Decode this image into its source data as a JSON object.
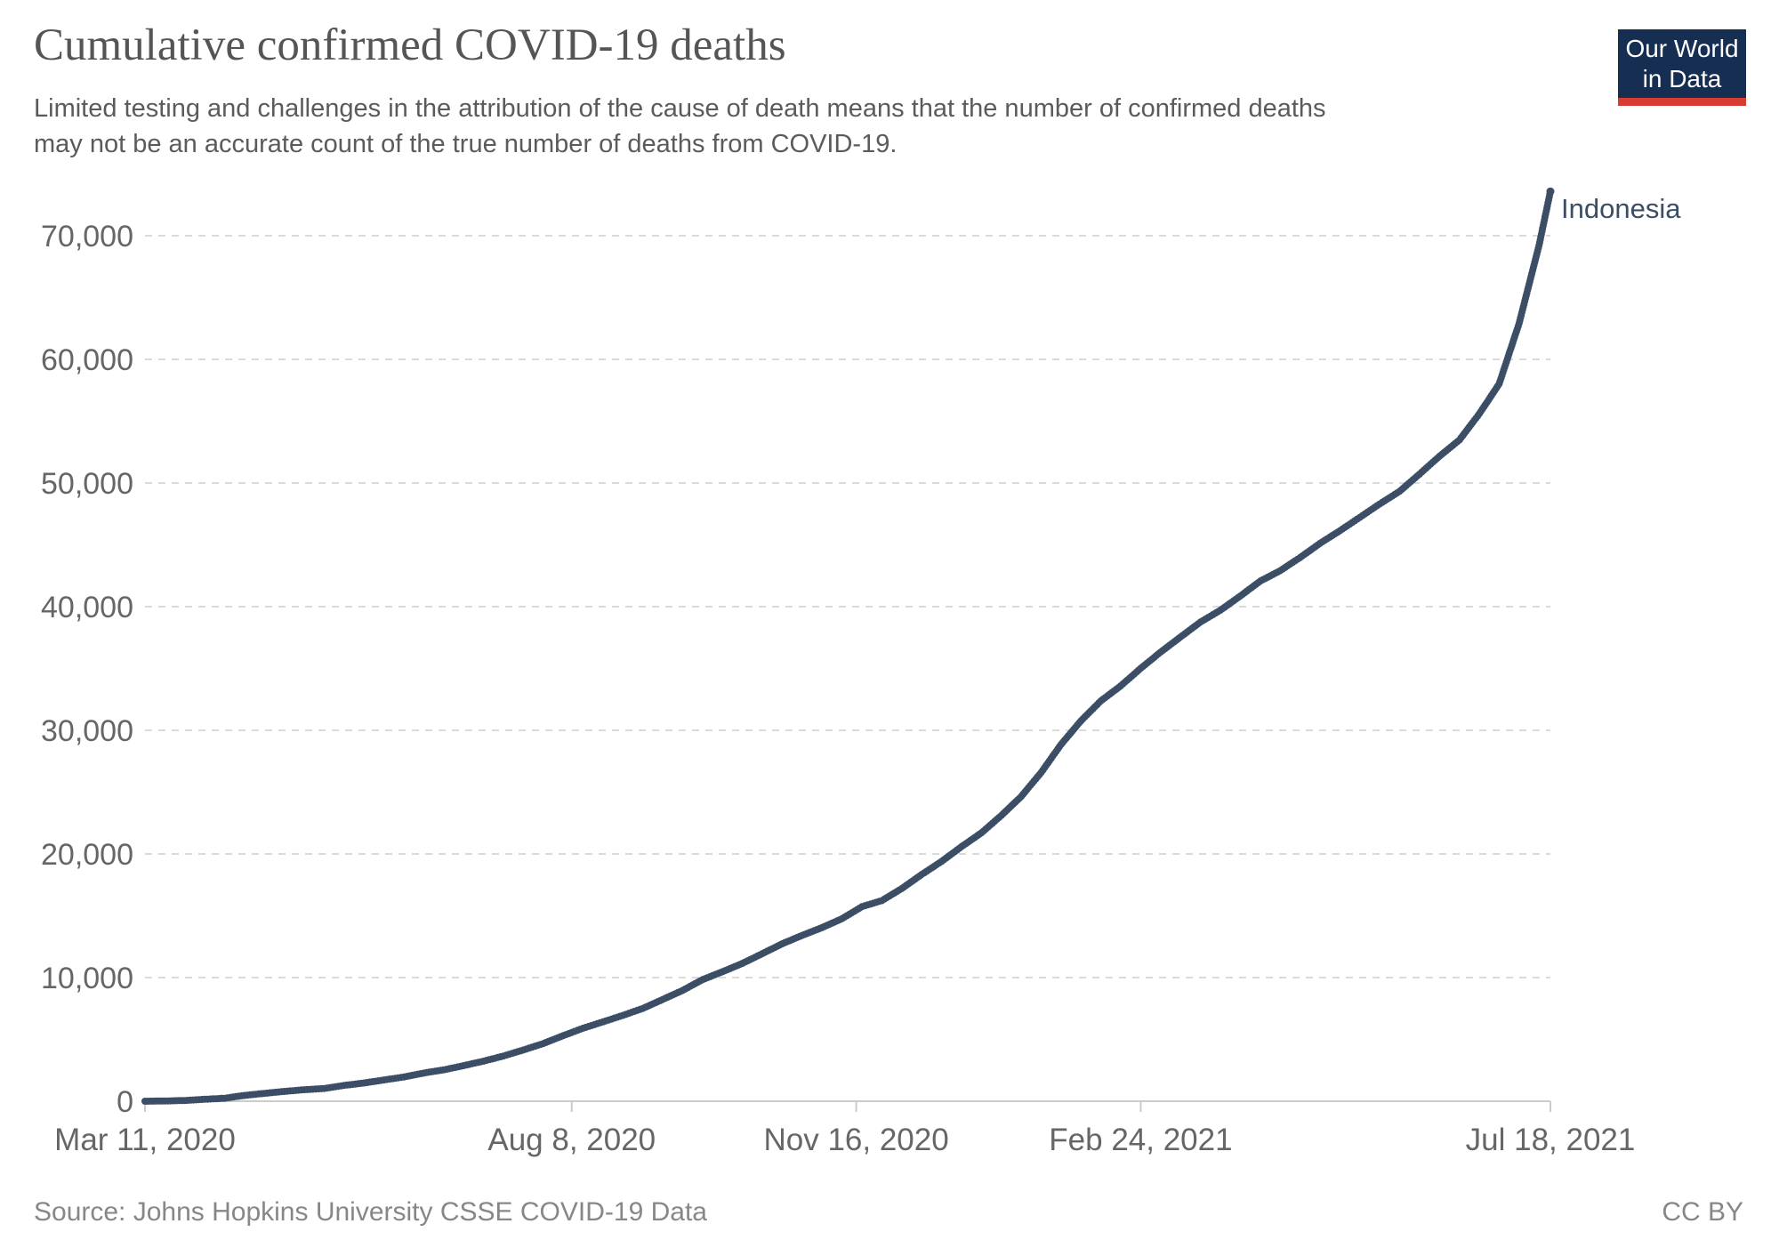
{
  "header": {
    "title": "Cumulative confirmed COVID-19 deaths",
    "subtitle_lines": [
      "Limited testing and challenges in the attribution of the cause of death means that the number of confirmed deaths",
      "may not be an accurate count of the true number of deaths from COVID-19."
    ]
  },
  "logo": {
    "line1": "Our World",
    "line2": "in Data",
    "bg_color": "#152e52",
    "accent_color": "#d73c32"
  },
  "footer": {
    "source": "Source: Johns Hopkins University CSSE COVID-19 Data",
    "license": "CC BY"
  },
  "chart_data": {
    "type": "line",
    "title": "Cumulative confirmed COVID-19 deaths",
    "xlabel": "",
    "ylabel": "",
    "grid": "horizontal-dashed",
    "legend_position": "end-of-line-label",
    "ylim": [
      0,
      70000
    ],
    "y_ticks": [
      {
        "value": 0,
        "label": "0"
      },
      {
        "value": 10000,
        "label": "10,000"
      },
      {
        "value": 20000,
        "label": "20,000"
      },
      {
        "value": 30000,
        "label": "30,000"
      },
      {
        "value": 40000,
        "label": "40,000"
      },
      {
        "value": 50000,
        "label": "50,000"
      },
      {
        "value": 60000,
        "label": "60,000"
      },
      {
        "value": 70000,
        "label": "70,000"
      }
    ],
    "x_ticks": [
      {
        "date": "2020-03-11",
        "label": "Mar 11, 2020"
      },
      {
        "date": "2020-08-08",
        "label": "Aug 8, 2020"
      },
      {
        "date": "2020-11-16",
        "label": "Nov 16, 2020"
      },
      {
        "date": "2021-02-24",
        "label": "Feb 24, 2021"
      },
      {
        "date": "2021-07-18",
        "label": "Jul 18, 2021"
      }
    ],
    "series": [
      {
        "name": "Indonesia",
        "color": "#3b4e66",
        "points": [
          [
            "2020-03-11",
            1
          ],
          [
            "2020-03-18",
            19
          ],
          [
            "2020-03-25",
            58
          ],
          [
            "2020-04-01",
            157
          ],
          [
            "2020-04-08",
            240
          ],
          [
            "2020-04-15",
            469
          ],
          [
            "2020-04-22",
            635
          ],
          [
            "2020-04-29",
            792
          ],
          [
            "2020-05-06",
            930
          ],
          [
            "2020-05-13",
            1028
          ],
          [
            "2020-05-20",
            1278
          ],
          [
            "2020-05-27",
            1473
          ],
          [
            "2020-06-03",
            1721
          ],
          [
            "2020-06-10",
            1959
          ],
          [
            "2020-06-17",
            2276
          ],
          [
            "2020-06-24",
            2535
          ],
          [
            "2020-07-01",
            2876
          ],
          [
            "2020-07-08",
            3241
          ],
          [
            "2020-07-15",
            3656
          ],
          [
            "2020-07-22",
            4143
          ],
          [
            "2020-07-29",
            4665
          ],
          [
            "2020-08-05",
            5302
          ],
          [
            "2020-08-12",
            5903
          ],
          [
            "2020-08-19",
            6418
          ],
          [
            "2020-08-26",
            6944
          ],
          [
            "2020-09-02",
            7505
          ],
          [
            "2020-09-09",
            8230
          ],
          [
            "2020-09-16",
            8965
          ],
          [
            "2020-09-23",
            9837
          ],
          [
            "2020-09-30",
            10473
          ],
          [
            "2020-10-07",
            11151
          ],
          [
            "2020-10-14",
            11935
          ],
          [
            "2020-10-21",
            12734
          ],
          [
            "2020-10-28",
            13411
          ],
          [
            "2020-11-04",
            14044
          ],
          [
            "2020-11-11",
            14761
          ],
          [
            "2020-11-18",
            15734
          ],
          [
            "2020-11-25",
            16225
          ],
          [
            "2020-12-02",
            17199
          ],
          [
            "2020-12-09",
            18336
          ],
          [
            "2020-12-16",
            19390
          ],
          [
            "2020-12-23",
            20589
          ],
          [
            "2020-12-30",
            21703
          ],
          [
            "2021-01-06",
            23109
          ],
          [
            "2021-01-13",
            24645
          ],
          [
            "2021-01-20",
            26590
          ],
          [
            "2021-01-27",
            28855
          ],
          [
            "2021-02-03",
            30770
          ],
          [
            "2021-02-10",
            32381
          ],
          [
            "2021-02-17",
            33596
          ],
          [
            "2021-02-24",
            35014
          ],
          [
            "2021-03-03",
            36325
          ],
          [
            "2021-03-10",
            37547
          ],
          [
            "2021-03-17",
            38753
          ],
          [
            "2021-03-24",
            39711
          ],
          [
            "2021-03-31",
            40858
          ],
          [
            "2021-04-07",
            42064
          ],
          [
            "2021-04-14",
            42906
          ],
          [
            "2021-04-21",
            43967
          ],
          [
            "2021-04-28",
            45116
          ],
          [
            "2021-05-05",
            46137
          ],
          [
            "2021-05-12",
            47218
          ],
          [
            "2021-05-19",
            48305
          ],
          [
            "2021-05-26",
            49328
          ],
          [
            "2021-06-02",
            50723
          ],
          [
            "2021-06-09",
            52162
          ],
          [
            "2021-06-16",
            53476
          ],
          [
            "2021-06-23",
            55594
          ],
          [
            "2021-06-30",
            58024
          ],
          [
            "2021-07-07",
            62908
          ],
          [
            "2021-07-14",
            69210
          ],
          [
            "2021-07-18",
            73582
          ]
        ]
      }
    ]
  }
}
